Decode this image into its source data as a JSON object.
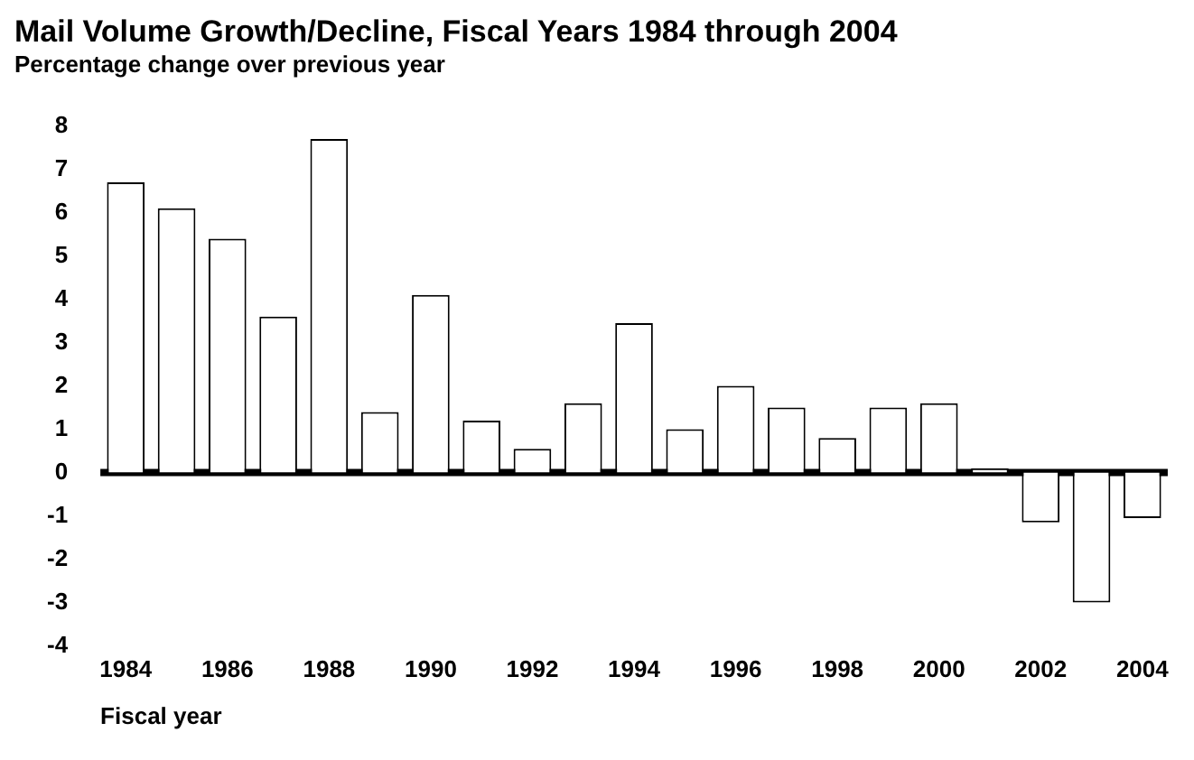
{
  "chart_data": {
    "type": "bar",
    "title": "Mail Volume Growth/Decline, Fiscal Years 1984 through 2004",
    "subtitle": "Percentage change over previous year",
    "xlabel": "Fiscal year",
    "categories": [
      "1984",
      null,
      "1986",
      null,
      "1988",
      null,
      "1990",
      null,
      "1992",
      null,
      "1994",
      null,
      "1996",
      null,
      "1998",
      null,
      "2000",
      null,
      "2002",
      null,
      "2004"
    ],
    "values": [
      6.7,
      6.1,
      5.4,
      3.6,
      7.7,
      1.4,
      4.1,
      1.2,
      0.55,
      1.6,
      3.45,
      1.0,
      2.0,
      1.5,
      0.8,
      1.5,
      1.6,
      0.1,
      -1.15,
      -3.0,
      -1.05
    ],
    "color": "#ffffff",
    "ylim": [
      -4,
      8
    ],
    "yticks": [
      -4,
      -3,
      -2,
      -1,
      0,
      1,
      2,
      3,
      4,
      5,
      6,
      7,
      8
    ],
    "ref_lines": [
      {
        "axis": "y",
        "value": 0,
        "color": "#000000"
      }
    ],
    "grid": false,
    "legend": false
  }
}
